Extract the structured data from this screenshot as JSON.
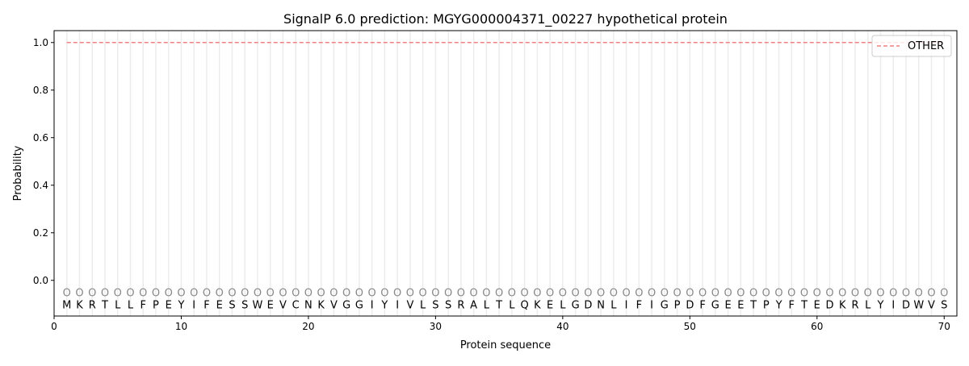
{
  "chart_data": {
    "type": "line",
    "title": "SignalP 6.0 prediction: MGYG000004371_00227 hypothetical protein",
    "xlabel": "Protein sequence",
    "ylabel": "Probability",
    "xlim": [
      0,
      71
    ],
    "ylim": [
      -0.15,
      1.05
    ],
    "xticks": [
      0,
      10,
      20,
      30,
      40,
      50,
      60,
      70
    ],
    "yticks": [
      "0.0",
      "0.2",
      "0.4",
      "0.6",
      "0.8",
      "1.0"
    ],
    "grid": "vertical per residue",
    "legend_position": "top-right",
    "sequence": [
      "M",
      "K",
      "R",
      "T",
      "L",
      "L",
      "F",
      "P",
      "E",
      "Y",
      "I",
      "F",
      "E",
      "S",
      "S",
      "W",
      "E",
      "V",
      "C",
      "N",
      "K",
      "V",
      "G",
      "G",
      "I",
      "Y",
      "I",
      "V",
      "L",
      "S",
      "S",
      "R",
      "A",
      "L",
      "T",
      "L",
      "Q",
      "K",
      "E",
      "L",
      "G",
      "D",
      "N",
      "L",
      "I",
      "F",
      "I",
      "G",
      "P",
      "D",
      "F",
      "G",
      "E",
      "E",
      "T",
      "P",
      "Y",
      "F",
      "T",
      "E",
      "D",
      "K",
      "R",
      "L",
      "Y",
      "I",
      "D",
      "W",
      "V",
      "S"
    ],
    "predicted_labels": "O",
    "series": [
      {
        "name": "OTHER",
        "color": "#f08080",
        "style": "dashed",
        "x_range": [
          1,
          70
        ],
        "value": 1.0
      }
    ]
  }
}
